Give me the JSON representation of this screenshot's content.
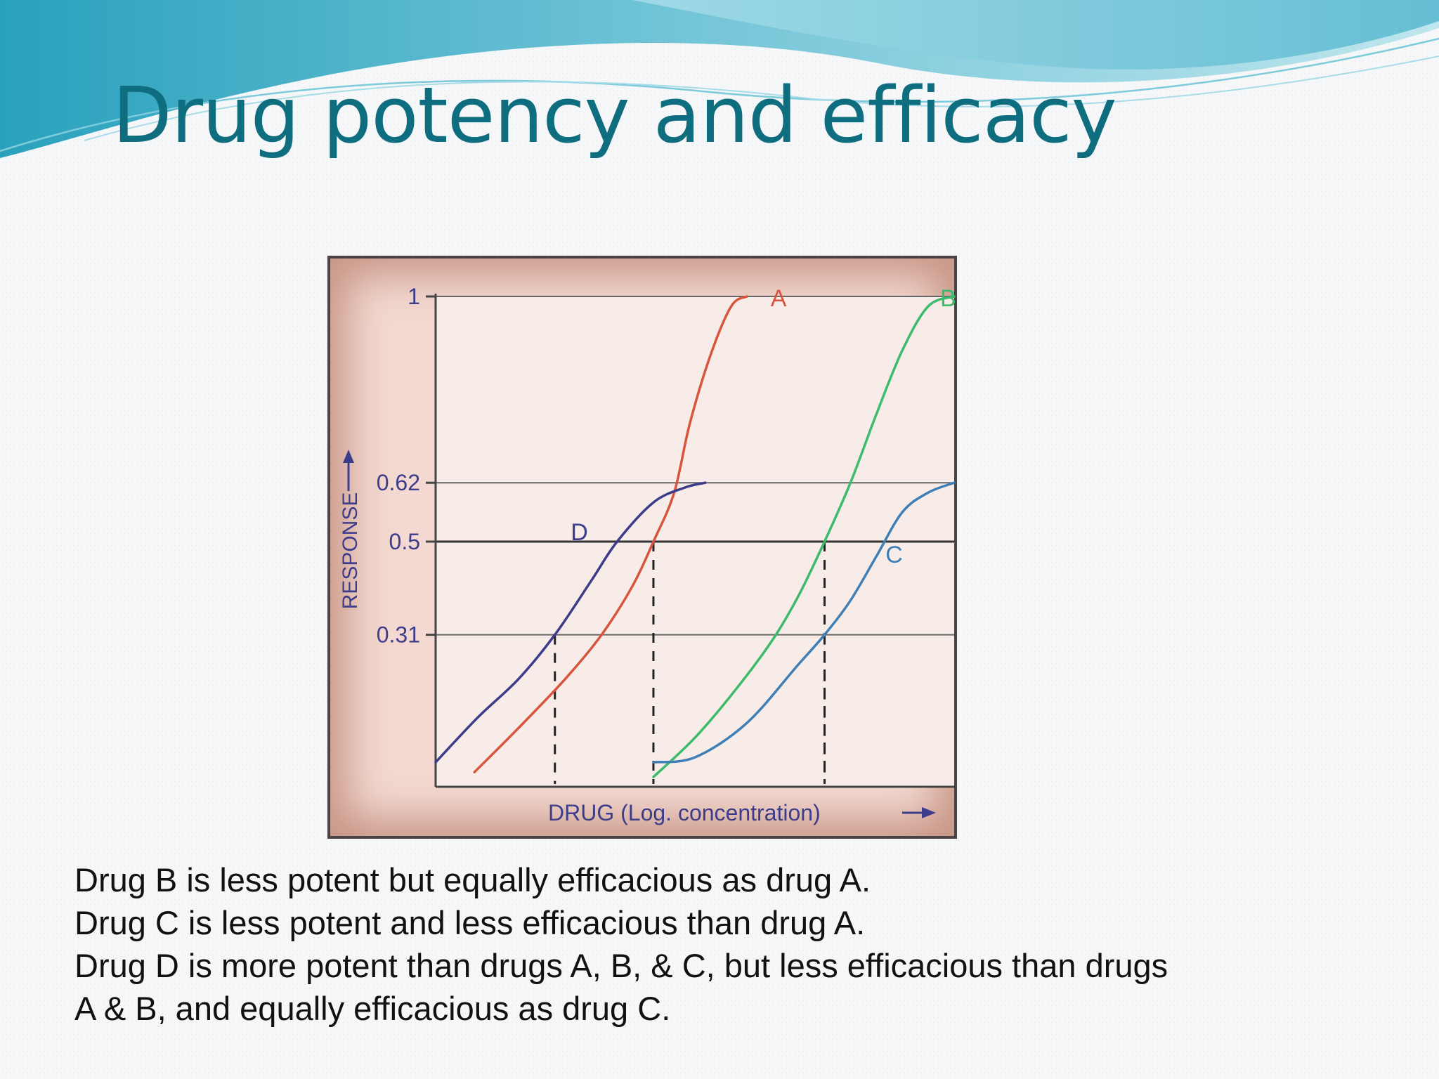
{
  "slide": {
    "title": "Drug potency and efficacy",
    "caption_lines": [
      "Drug B is less potent but equally efficacious as drug A.",
      "Drug C is less potent and less efficacious than drug A.",
      "Drug D is more potent than drugs A, B, & C, but less efficacious than drugs",
      "A & B, and equally efficacious as drug C."
    ],
    "colors": {
      "title": "#0f6d80",
      "wave_light": "#bfe6ee",
      "wave_mid": "#6fc3d6",
      "wave_dark": "#2aa1bd"
    }
  },
  "chart_data": {
    "type": "line",
    "title": "",
    "xlabel": "DRUG (Log. concentration)",
    "ylabel": "RESPONSE",
    "xlim": [
      0,
      10
    ],
    "ylim": [
      0,
      1
    ],
    "ytick_labels": [
      "1",
      "0.62",
      "0.5",
      "0.31"
    ],
    "yticks": [
      1,
      0.62,
      0.5,
      0.31
    ],
    "grid": "horizontal lines at tick values",
    "ec50_markers": [
      {
        "series": "D",
        "x": 2.3,
        "y": 0.31
      },
      {
        "series": "A",
        "x": 4.2,
        "y": 0.5
      },
      {
        "series": "B",
        "x": 7.5,
        "y": 0.5
      },
      {
        "series": "C",
        "x": 7.5,
        "y": 0.31
      }
    ],
    "series": [
      {
        "name": "A",
        "color": "#d9543c",
        "x": [
          0.75,
          1.6,
          2.5,
          3.2,
          3.8,
          4.2,
          4.6,
          4.9,
          5.3,
          5.7,
          6.0
        ],
        "y": [
          0.03,
          0.12,
          0.22,
          0.31,
          0.41,
          0.5,
          0.6,
          0.74,
          0.88,
          0.98,
          1.0
        ]
      },
      {
        "name": "B",
        "color": "#3dbb6b",
        "x": [
          4.2,
          5.0,
          5.8,
          6.5,
          7.0,
          7.5,
          8.0,
          8.5,
          9.0,
          9.5,
          10.0
        ],
        "y": [
          0.02,
          0.1,
          0.2,
          0.3,
          0.39,
          0.5,
          0.62,
          0.76,
          0.89,
          0.98,
          1.0
        ]
      },
      {
        "name": "C",
        "color": "#3f7fb5",
        "x": [
          4.2,
          5.0,
          6.0,
          7.0,
          7.5,
          8.0,
          8.5,
          9.0,
          9.5,
          10.0
        ],
        "y": [
          0.05,
          0.06,
          0.13,
          0.25,
          0.31,
          0.38,
          0.47,
          0.56,
          0.6,
          0.62
        ]
      },
      {
        "name": "D",
        "color": "#3d3c8a",
        "x": [
          0.0,
          0.8,
          1.6,
          2.3,
          3.0,
          3.5,
          4.2,
          4.8,
          5.2
        ],
        "y": [
          0.05,
          0.14,
          0.22,
          0.31,
          0.42,
          0.5,
          0.58,
          0.61,
          0.62
        ]
      }
    ]
  }
}
